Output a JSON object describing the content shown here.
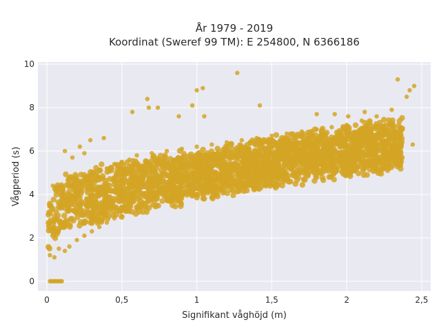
{
  "chart_data": {
    "type": "scatter",
    "title_lines": [
      "År 1979 - 2019",
      "Koordinat (Sweref 99 TM): E 254800, N 6366186"
    ],
    "xlabel": "Signifikant våghöjd (m)",
    "ylabel": "Vågperiod (s)",
    "xlim": [
      -0.06,
      2.56
    ],
    "ylim": [
      -0.45,
      10.1
    ],
    "x_ticks": [
      0,
      0.5,
      1,
      1.5,
      2,
      2.5
    ],
    "x_tick_labels": [
      "0",
      "0,5",
      "1",
      "1,5",
      "2",
      "2,5"
    ],
    "y_ticks": [
      0,
      2,
      4,
      6,
      8,
      10
    ],
    "y_tick_labels": [
      "0",
      "2",
      "4",
      "6",
      "8",
      "10"
    ],
    "grid": true,
    "marker_color": "#d4a424",
    "plot_background": "#e9e9f1",
    "series": [
      {
        "x": [
          0.02,
          0.03,
          0.04,
          0.05,
          0.06,
          0.07,
          0.08,
          0.09,
          0.1,
          0.02,
          0.05,
          0.08,
          0.1,
          0.12,
          0.15,
          0.15,
          0.2,
          0.2,
          0.25,
          0.25,
          0.3,
          0.3,
          0.35,
          0.35,
          0.4,
          0.4,
          0.45,
          0.45,
          0.5,
          0.5,
          0.55,
          0.55,
          0.6,
          0.6,
          0.7,
          0.7,
          0.8,
          0.8,
          0.9,
          0.9,
          1.0,
          1.0,
          1.1,
          1.1,
          1.2,
          1.2,
          1.3,
          1.3,
          1.4,
          1.4,
          1.5,
          1.5,
          1.6,
          1.6,
          1.7,
          1.7,
          1.8,
          1.8,
          1.9,
          1.9,
          2.0,
          2.0,
          2.1,
          2.1,
          2.2,
          2.2,
          2.3,
          2.3,
          2.4,
          2.42,
          2.45,
          1.27,
          1.04,
          1.0,
          0.67,
          0.57,
          0.68,
          0.88,
          1.05,
          0.97,
          1.42,
          1.8,
          1.92,
          2.01,
          2.12,
          2.34,
          2.44,
          0.12,
          0.25,
          0.38,
          0.22,
          0.29,
          0.17,
          0.04,
          1.85,
          1.77,
          2.36,
          0.74
        ],
        "y": [
          0,
          0,
          0,
          0,
          0,
          0,
          0,
          0,
          0,
          1.2,
          1.1,
          1.5,
          3.4,
          1.4,
          3.9,
          1.6,
          4.3,
          1.9,
          4.6,
          2.1,
          4.9,
          2.3,
          5.1,
          2.5,
          5.2,
          2.7,
          5.4,
          2.9,
          5.5,
          3.0,
          5.6,
          3.2,
          5.8,
          3.3,
          5.9,
          3.5,
          6.0,
          3.7,
          6.1,
          3.8,
          6.2,
          4.0,
          6.3,
          4.1,
          6.4,
          4.3,
          6.5,
          4.4,
          6.6,
          4.6,
          6.7,
          4.8,
          6.8,
          5.0,
          6.9,
          5.1,
          7.0,
          5.3,
          7.1,
          5.5,
          7.2,
          5.7,
          7.4,
          5.9,
          7.6,
          6.1,
          7.9,
          6.3,
          8.5,
          8.8,
          9.0,
          9.6,
          8.9,
          8.8,
          8.4,
          7.8,
          8.0,
          7.6,
          7.6,
          8.1,
          8.1,
          7.7,
          7.7,
          7.6,
          7.8,
          9.3,
          6.3,
          6.0,
          5.9,
          6.6,
          6.2,
          6.5,
          5.7,
          4.4,
          5.5,
          5.8,
          6.5,
          8.0
        ]
      }
    ]
  }
}
